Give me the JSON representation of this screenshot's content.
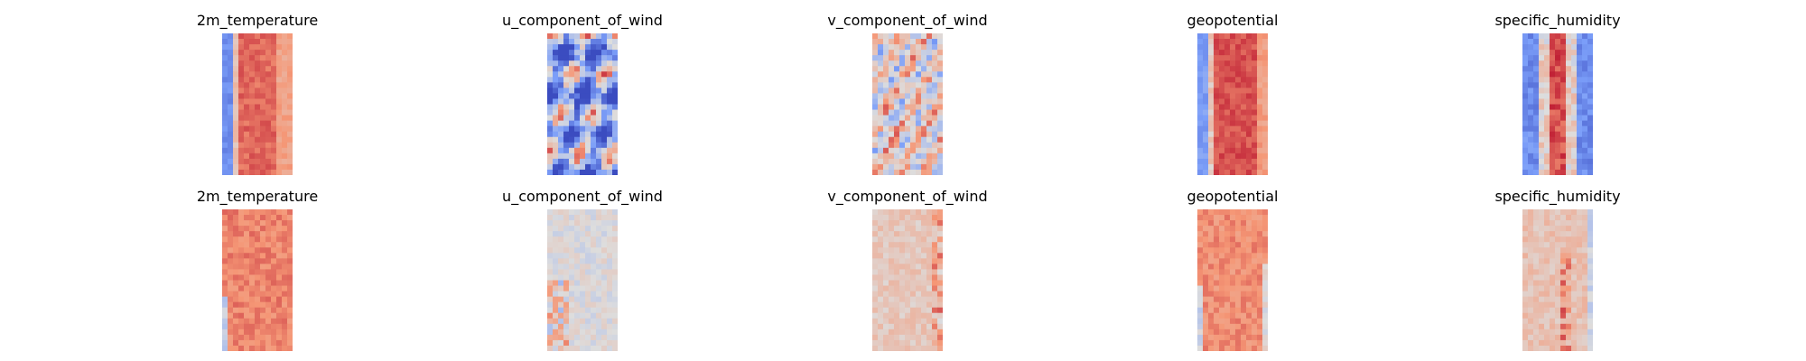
{
  "chart_data": {
    "type": "heatmap",
    "colormap": "coolwarm",
    "grid": false,
    "axes_visible": false,
    "rows": [
      {
        "panels": [
          {
            "title": "2m_temperature"
          },
          {
            "title": "u_component_of_wind"
          },
          {
            "title": "v_component_of_wind"
          },
          {
            "title": "geopotential"
          },
          {
            "title": "specific_humidity"
          }
        ]
      },
      {
        "panels": [
          {
            "title": "2m_temperature"
          },
          {
            "title": "u_component_of_wind"
          },
          {
            "title": "v_component_of_wind"
          },
          {
            "title": "geopotential"
          },
          {
            "title": "specific_humidity"
          }
        ]
      }
    ]
  }
}
